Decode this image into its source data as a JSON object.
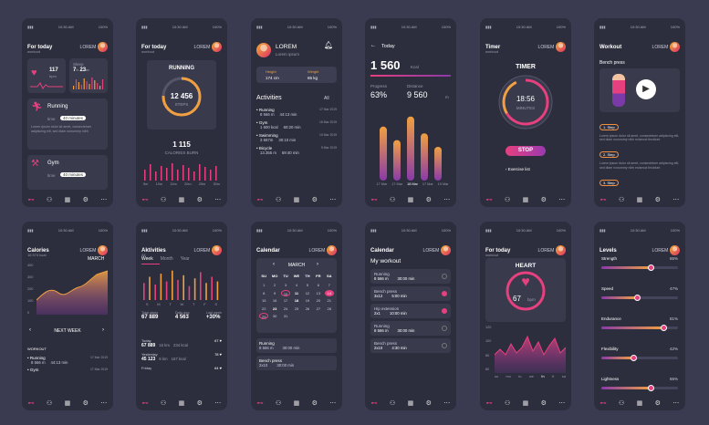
{
  "status": {
    "time": "10:30 AM",
    "battery": "100%"
  },
  "user": "LOREM",
  "nav_icons": [
    "dumbbell-icon",
    "user-icon",
    "calendar-icon",
    "gear-icon",
    "more-icon"
  ],
  "s1": {
    "title": "For today",
    "sub": "workout",
    "heart_val": "117",
    "heart_unit": "bpm",
    "sleep_label": "Sleep",
    "sleep_val": "7",
    "sleep_unit1": "h",
    "sleep_min": "23",
    "sleep_unit2": "m",
    "running": "Running",
    "run_time_label": "time",
    "run_time": "40 minutes",
    "run_text": "Lorem ipsum dolor sit amet, consectetuer adipiscing elit, sed diam nonummy nibh",
    "gym": "Gym",
    "gym_time_label": "time",
    "gym_time": "40 minutes"
  },
  "s2": {
    "title": "For today",
    "sub": "workout",
    "card_title": "RUNNING",
    "steps": "12 456",
    "steps_label": "STEPS",
    "cal": "1 115",
    "cal_label": "CALORIES BURN",
    "ticks": [
      "5m",
      "10m",
      "15m",
      "20m",
      "25m",
      "30m"
    ],
    "bars": [
      0.6,
      0.9,
      0.5,
      0.8,
      0.7,
      0.95,
      0.6,
      0.85,
      0.7,
      0.5,
      0.9,
      0.75,
      0.6,
      0.8
    ]
  },
  "s3": {
    "name": "LOREM",
    "sub": "Lorem ipsum",
    "height_label": "Height",
    "height": "174 cm",
    "weight_label": "Weight",
    "weight": "65 kg",
    "activities": "Activities",
    "all": "All",
    "items": [
      {
        "name": "Running",
        "dist": "8 566 m",
        "time": "44:13 min",
        "date": "17 Mar 2019"
      },
      {
        "name": "Gym",
        "dist": "1 600 kcal",
        "time": "60:20 min",
        "date": "16 Mar 2019"
      },
      {
        "name": "Swimming",
        "dist": "3 667m",
        "time": "30:10 min",
        "date": "10 Mar 2019"
      },
      {
        "name": "Bicycle",
        "dist": "13.355 m",
        "time": "59:40 min",
        "date": "9 Mar 2019"
      }
    ]
  },
  "s4": {
    "title": "Today",
    "kcal": "1 560",
    "kcal_unit": "Kcal",
    "progress_label": "Progress",
    "progress": "63%",
    "distance_label": "Distance",
    "distance": "9 560",
    "distance_unit": "m",
    "bars": [
      0.8,
      0.6,
      0.95,
      0.7,
      0.5
    ],
    "dates": [
      "17 Mar",
      "17 Mar",
      "18 Mar",
      "17 Mar",
      "19 Mar"
    ]
  },
  "s5": {
    "title": "Timer",
    "sub": "workout",
    "timer_label": "TIMER",
    "time": "18:56",
    "minutes": "MINUTES",
    "stop": "STOP",
    "exercise_list": "Exercise list"
  },
  "s6": {
    "title": "Workout",
    "exercise": "Bench press",
    "steps": [
      {
        "label": "1. Step",
        "text": "Lorem ipsum dolor sit amet, consectetuer adipiscing elit, sed diam nonummy nibh euismod tincidunt"
      },
      {
        "label": "2. Step",
        "text": "Lorem ipsum dolor sit amet, consectetuer adipiscing elit, sed diam nonummy nibh euismod tincidunt"
      },
      {
        "label": "3. Step",
        "text": ""
      }
    ]
  },
  "s7": {
    "title": "Calories",
    "sub": "16 574 kcal",
    "month": "MARCH",
    "y_ticks": [
      "400",
      "300",
      "200",
      "100",
      "0"
    ],
    "next_week": "NEXT WEEK",
    "workout": "WORKOUT",
    "items": [
      {
        "name": "Running",
        "dist": "8 566 m",
        "time": "44:13 min",
        "date": "17 Mar 2019"
      },
      {
        "name": "Gym",
        "dist": "",
        "time": "",
        "date": "17 Mar 2019"
      }
    ]
  },
  "s8": {
    "title": "Aktivities",
    "sub": "All",
    "tabs": [
      "Week",
      "Month",
      "Year"
    ],
    "days": [
      "S",
      "M",
      "T",
      "W",
      "T",
      "F",
      "S"
    ],
    "bars": [
      0.55,
      0.75,
      0.5,
      0.85,
      0.6,
      0.95,
      0.65,
      0.8,
      0.45,
      0.7,
      0.9,
      0.55,
      0.75,
      0.6
    ],
    "total_label": "Total steps",
    "total": "67 889",
    "avg_label": "Daily avg",
    "avg": "4 563",
    "last_label": "Last week",
    "last": "+30%",
    "rows": [
      {
        "label": "Today",
        "steps": "67 889",
        "km": "15 km",
        "kcal": "234 kcal",
        "score": "67"
      },
      {
        "label": "Yesterday",
        "steps": "45 123",
        "km": "8 km",
        "kcal": "167 kcal",
        "score": "78"
      },
      {
        "label": "Friday",
        "steps": "",
        "km": "",
        "kcal": "",
        "score": "64"
      }
    ]
  },
  "s9": {
    "title": "Calendar",
    "month": "MARCH",
    "week": [
      "SU",
      "MO",
      "TU",
      "WE",
      "TH",
      "FR",
      "SA"
    ],
    "days": [
      "1",
      "2",
      "3",
      "4",
      "5",
      "6",
      "7",
      "8",
      "9",
      "10",
      "11",
      "12",
      "13",
      "14",
      "15",
      "16",
      "17",
      "18",
      "19",
      "20",
      "21",
      "22",
      "23",
      "24",
      "25",
      "26",
      "27",
      "28",
      "29",
      "30",
      "31"
    ],
    "items": [
      {
        "name": "Running",
        "a": "8 566 m",
        "b": "30:00 min"
      },
      {
        "name": "Bench press",
        "a": "2x10",
        "b": "30:00 min"
      }
    ]
  },
  "s10": {
    "title": "Calendar",
    "heading": "My workout",
    "items": [
      {
        "name": "Running",
        "a": "8 566 m",
        "b": "30:00 min",
        "done": false
      },
      {
        "name": "Bench press",
        "a": "3x12",
        "b": "5:00 min",
        "done": true
      },
      {
        "name": "Hip extension",
        "a": "2x1",
        "b": "10:00 min",
        "done": true
      },
      {
        "name": "Running",
        "a": "8 566 m",
        "b": "30:00 min",
        "done": false
      },
      {
        "name": "Bench press",
        "a": "2x10",
        "b": "4:30 min",
        "done": false
      }
    ]
  },
  "s11": {
    "title": "For today",
    "sub": "workout",
    "heart": "HEART",
    "bpm": "67",
    "bpm_unit": "bpm",
    "y_ticks": [
      "120",
      "100",
      "80",
      "60"
    ],
    "days": [
      "su",
      "mo",
      "tu",
      "we",
      "th",
      "fr",
      "sa"
    ]
  },
  "s12": {
    "title": "Levels",
    "items": [
      {
        "name": "Strength",
        "pct": "65%",
        "v": 0.65
      },
      {
        "name": "Speed",
        "pct": "47%",
        "v": 0.47
      },
      {
        "name": "Endurance",
        "pct": "81%",
        "v": 0.81
      },
      {
        "name": "Flexibility",
        "pct": "42%",
        "v": 0.42
      },
      {
        "name": "Lightness",
        "pct": "65%",
        "v": 0.65
      }
    ]
  },
  "colors": {
    "accent": "#e6407f",
    "orange": "#f0a040",
    "purple": "#8a3aa8",
    "bg": "#3a3b50",
    "card": "#2d2e3d"
  }
}
